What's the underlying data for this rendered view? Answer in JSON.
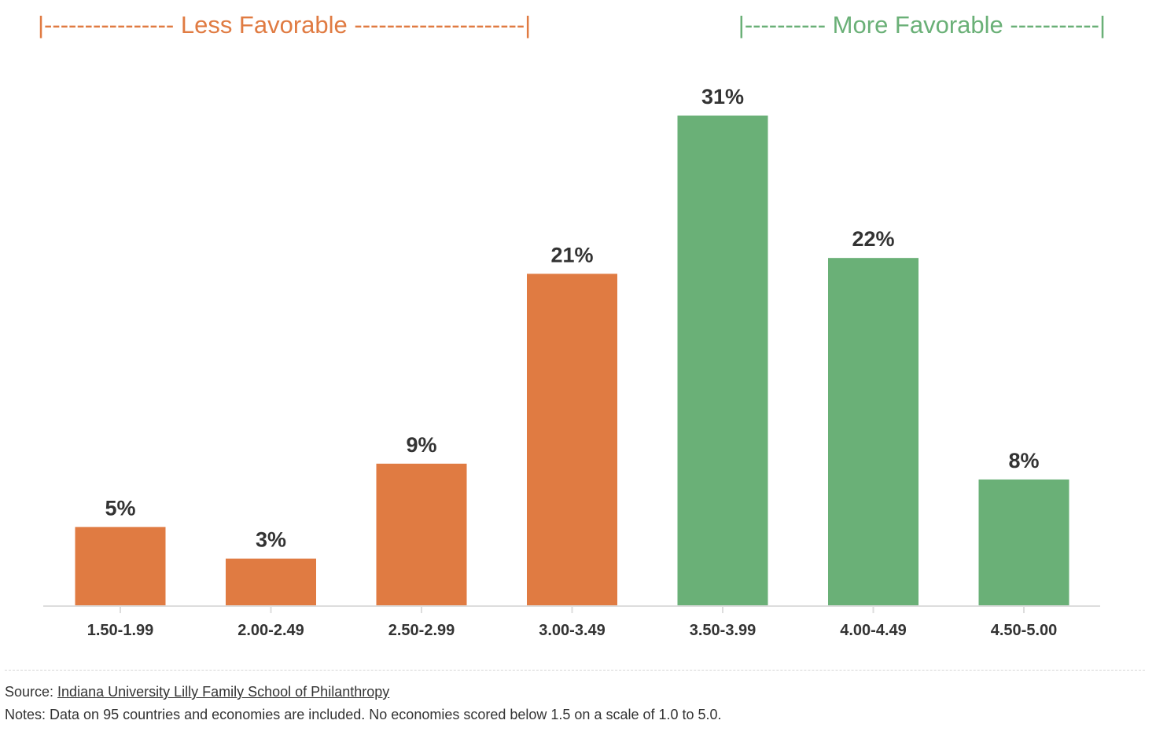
{
  "chart_data": {
    "type": "bar",
    "categories": [
      "1.50-1.99",
      "2.00-2.49",
      "2.50-2.99",
      "3.00-3.49",
      "3.50-3.99",
      "4.00-4.49",
      "4.50-5.00"
    ],
    "values": [
      5,
      3,
      9,
      21,
      31,
      22,
      8
    ],
    "value_labels": [
      "5%",
      "3%",
      "9%",
      "21%",
      "31%",
      "22%",
      "8%"
    ],
    "bar_groups": [
      "less",
      "less",
      "less",
      "less",
      "more",
      "more",
      "more"
    ],
    "ylim": [
      0,
      31
    ],
    "grid": false,
    "colors": {
      "less": "#E07B42",
      "more": "#6AB077",
      "axis": "#dddddd",
      "label": "#333333"
    },
    "annotations": {
      "less": "|---------------- Less Favorable ---------------------|",
      "more": "|---------- More Favorable -----------|"
    }
  },
  "footer": {
    "source_prefix": "Source: ",
    "source_link": "Indiana University Lilly Family School of Philanthropy",
    "notes": "Notes: Data on 95 countries and economies are included. No economies scored below 1.5 on a scale of 1.0 to 5.0."
  }
}
